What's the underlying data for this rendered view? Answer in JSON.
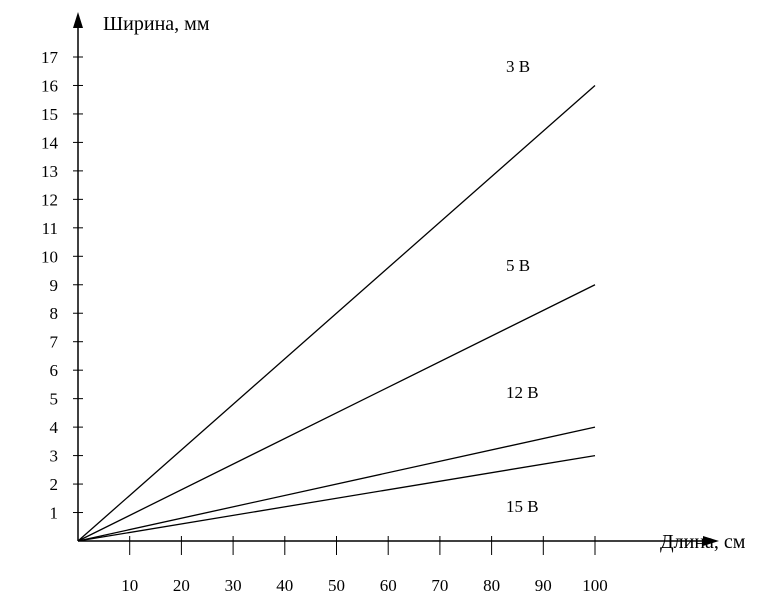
{
  "chart_data": {
    "type": "line",
    "xlabel": "Длина, см",
    "ylabel": "Ширина, мм",
    "x_ticks": [
      10,
      20,
      30,
      40,
      50,
      60,
      70,
      80,
      90,
      100
    ],
    "y_ticks": [
      1,
      2,
      3,
      4,
      5,
      6,
      7,
      8,
      9,
      10,
      11,
      12,
      13,
      14,
      15,
      16,
      17
    ],
    "xlim": [
      0,
      100
    ],
    "ylim": [
      0,
      17
    ],
    "grid": false,
    "legend": "none",
    "series": [
      {
        "name": "3 В",
        "x": [
          0,
          100
        ],
        "y": [
          0,
          16
        ]
      },
      {
        "name": "5 В",
        "x": [
          0,
          100
        ],
        "y": [
          0,
          9
        ]
      },
      {
        "name": "12 В",
        "x": [
          0,
          100
        ],
        "y": [
          0,
          4
        ]
      },
      {
        "name": "15 В",
        "x": [
          0,
          100
        ],
        "y": [
          0,
          3
        ]
      }
    ]
  }
}
